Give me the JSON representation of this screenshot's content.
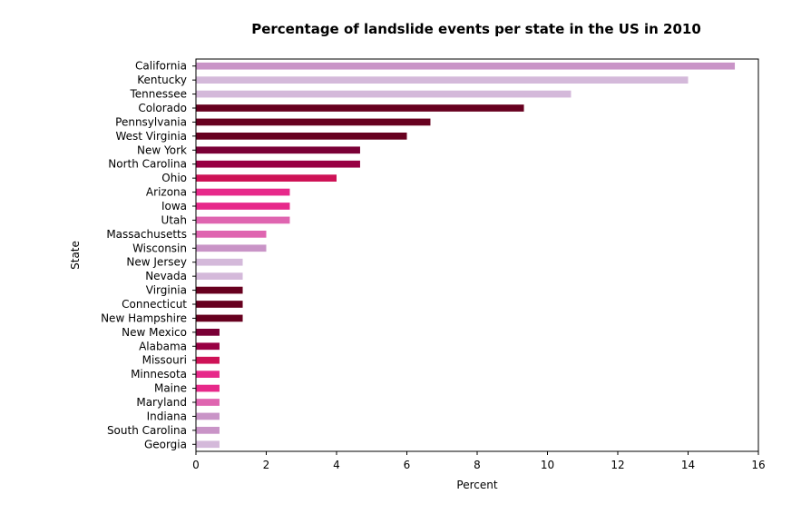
{
  "chart_data": {
    "type": "bar",
    "orientation": "horizontal",
    "title": "Percentage of landslide events per state in the US in 2010",
    "xlabel": "Percent",
    "ylabel": "State",
    "xlim": [
      0,
      16
    ],
    "xticks": [
      "0",
      "2",
      "4",
      "6",
      "8",
      "10",
      "12",
      "14",
      "16"
    ],
    "grid": false,
    "categories": [
      "California",
      "Kentucky",
      "Tennessee",
      "Colorado",
      "Pennsylvania",
      "West Virginia",
      "New York",
      "North Carolina",
      "Ohio",
      "Arizona",
      "Iowa",
      "Utah",
      "Massachusetts",
      "Wisconsin",
      "New Jersey",
      "Nevada",
      "Virginia",
      "Connecticut",
      "New Hampshire",
      "New Mexico",
      "Alabama",
      "Missouri",
      "Minnesota",
      "Maine",
      "Maryland",
      "Indiana",
      "South Carolina",
      "Georgia"
    ],
    "values": [
      15.33,
      14.0,
      10.67,
      9.33,
      6.67,
      6.0,
      4.67,
      4.67,
      4.0,
      2.67,
      2.67,
      2.67,
      2.0,
      2.0,
      1.33,
      1.33,
      1.33,
      1.33,
      1.33,
      0.67,
      0.67,
      0.67,
      0.67,
      0.67,
      0.67,
      0.67,
      0.67,
      0.67
    ],
    "bar_colors": [
      "#c994c7",
      "#d4b9da",
      "#d4b9da",
      "#67001f",
      "#67001f",
      "#67001f",
      "#7a0036",
      "#980043",
      "#ce1256",
      "#e7298a",
      "#e7298a",
      "#df65b0",
      "#df65b0",
      "#c994c7",
      "#d4b9da",
      "#d4b9da",
      "#67001f",
      "#67001f",
      "#67001f",
      "#7a0036",
      "#980043",
      "#ce1256",
      "#e7298a",
      "#e7298a",
      "#df65b0",
      "#c994c7",
      "#c994c7",
      "#d4b9da"
    ]
  }
}
